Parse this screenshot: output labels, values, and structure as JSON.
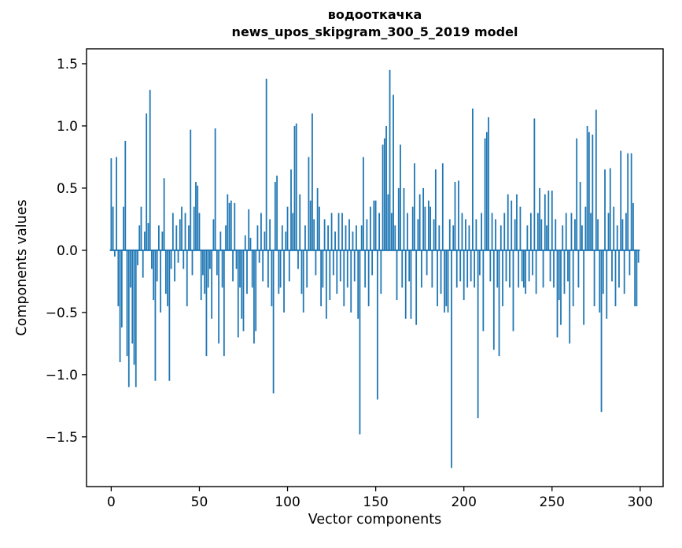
{
  "figure": {
    "title": "водооткачка",
    "subtitle": "news_upos_skipgram_300_5_2019 model",
    "xlabel": "Vector components",
    "ylabel": "Components values"
  },
  "chart_data": {
    "type": "bar",
    "title": "водооткачка",
    "subtitle": "news_upos_skipgram_300_5_2019 model",
    "xlabel": "Vector components",
    "ylabel": "Components values",
    "bar_color": "#1f77b4",
    "spine_color": "#000000",
    "xlim": [
      -14,
      313
    ],
    "ylim": [
      -1.9,
      1.62
    ],
    "grid": false,
    "legend": "none",
    "xticks": [
      0,
      50,
      100,
      150,
      200,
      250,
      300
    ],
    "xtick_labels": [
      "0",
      "50",
      "100",
      "150",
      "200",
      "250",
      "300"
    ],
    "yticks": [
      -1.5,
      -1.0,
      -0.5,
      0.0,
      0.5,
      1.0,
      1.5
    ],
    "ytick_labels": [
      "−1.5",
      "−1.0",
      "−0.5",
      "0.0",
      "0.5",
      "1.0",
      "1.5"
    ],
    "x_start": 0,
    "values": [
      0.74,
      0.35,
      -0.05,
      0.75,
      -0.45,
      -0.9,
      -0.62,
      0.35,
      0.88,
      -0.85,
      -1.1,
      -0.3,
      -0.75,
      -0.92,
      -1.1,
      -0.12,
      0.2,
      0.35,
      -0.22,
      0.15,
      1.1,
      0.22,
      1.29,
      -0.15,
      -0.4,
      -1.05,
      -0.25,
      0.2,
      -0.5,
      0.15,
      0.58,
      -0.35,
      -0.45,
      -1.05,
      -0.15,
      0.3,
      -0.25,
      0.2,
      -0.1,
      0.25,
      0.35,
      -0.15,
      0.3,
      -0.45,
      0.2,
      0.97,
      -0.2,
      0.35,
      0.55,
      0.52,
      0.3,
      -0.4,
      -0.2,
      -0.35,
      -0.85,
      -0.3,
      -0.15,
      -0.55,
      0.25,
      0.98,
      -0.2,
      -0.75,
      0.15,
      -0.3,
      -0.85,
      0.2,
      0.45,
      0.38,
      0.4,
      -0.25,
      0.38,
      -0.15,
      -0.7,
      -0.3,
      -0.55,
      -0.65,
      0.12,
      -0.35,
      0.33,
      0.1,
      -0.3,
      -0.75,
      -0.65,
      0.2,
      -0.1,
      0.3,
      -0.25,
      0.15,
      1.38,
      -0.3,
      0.25,
      -0.45,
      -1.15,
      0.55,
      0.6,
      -0.35,
      -0.3,
      0.2,
      -0.5,
      0.15,
      0.35,
      -0.25,
      0.65,
      0.3,
      1.0,
      1.02,
      -0.15,
      0.45,
      -0.35,
      -0.5,
      0.2,
      -0.3,
      0.75,
      0.4,
      1.1,
      0.25,
      -0.2,
      0.5,
      0.35,
      -0.45,
      -0.3,
      0.25,
      -0.55,
      0.2,
      -0.4,
      0.3,
      -0.2,
      0.15,
      -0.35,
      0.3,
      -0.25,
      0.3,
      -0.45,
      0.2,
      -0.3,
      0.25,
      -0.5,
      0.15,
      -0.25,
      0.2,
      -0.55,
      -1.48,
      0.2,
      0.75,
      -0.3,
      0.25,
      -0.45,
      0.35,
      -0.2,
      0.4,
      0.4,
      -1.2,
      0.3,
      -0.35,
      0.85,
      0.9,
      1.0,
      0.45,
      1.45,
      0.3,
      1.25,
      0.2,
      -0.4,
      0.5,
      0.85,
      -0.3,
      0.5,
      -0.55,
      0.3,
      -0.25,
      -0.55,
      0.35,
      0.7,
      -0.6,
      0.25,
      0.45,
      -0.3,
      0.5,
      0.35,
      -0.2,
      0.4,
      0.35,
      -0.3,
      0.25,
      0.65,
      -0.45,
      0.2,
      -0.35,
      0.7,
      -0.5,
      -0.45,
      -0.5,
      0.25,
      -1.75,
      0.2,
      0.55,
      -0.3,
      0.56,
      -0.25,
      0.3,
      -0.4,
      0.25,
      -0.3,
      0.2,
      -0.25,
      1.14,
      -0.3,
      0.25,
      -1.35,
      -0.2,
      0.3,
      -0.65,
      0.9,
      0.95,
      1.07,
      -0.25,
      0.3,
      -0.8,
      0.25,
      -0.3,
      -0.85,
      0.2,
      -0.45,
      0.3,
      -0.25,
      0.45,
      -0.3,
      0.4,
      -0.65,
      0.25,
      0.45,
      -0.3,
      0.35,
      -0.25,
      -0.3,
      -0.35,
      0.2,
      -0.25,
      0.3,
      -0.2,
      1.06,
      -0.35,
      0.3,
      0.5,
      0.25,
      -0.3,
      0.45,
      0.2,
      0.48,
      -0.25,
      0.48,
      -0.3,
      0.25,
      -0.7,
      -0.4,
      -0.6,
      0.2,
      -0.35,
      0.3,
      -0.25,
      -0.75,
      0.3,
      -0.45,
      0.25,
      0.9,
      -0.3,
      0.55,
      0.2,
      -0.6,
      0.35,
      1.0,
      0.95,
      0.3,
      0.93,
      -0.45,
      1.13,
      0.25,
      -0.5,
      -1.3,
      -0.35,
      0.65,
      -0.55,
      0.3,
      0.66,
      -0.25,
      0.35,
      -0.45,
      0.2,
      -0.3,
      0.8,
      0.25,
      -0.35,
      0.3,
      0.78,
      -0.2,
      0.78,
      0.38,
      -0.45,
      -0.45,
      -0.1
    ]
  }
}
